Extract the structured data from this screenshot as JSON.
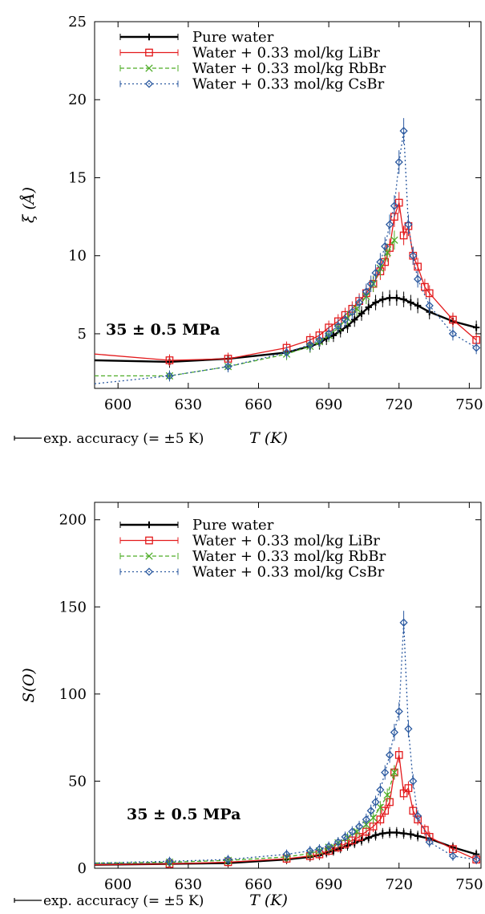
{
  "chart_data": [
    {
      "type": "line",
      "ylabel": "ξ (Å)",
      "xlabel": "T (K)",
      "xlim": [
        590,
        755
      ],
      "ylim": [
        1.5,
        25
      ],
      "xticks": [
        600,
        630,
        660,
        690,
        720,
        750
      ],
      "yticks": [
        5,
        10,
        15,
        20,
        25
      ],
      "annotation": "35 ±  0.5 MPa",
      "accuracy_note": "exp. accuracy (= ±5 K)",
      "legend_position": "top-left",
      "series": [
        {
          "name": "Pure water",
          "color": "#000000",
          "marker": "plus",
          "dash": "solid",
          "x": [
            590,
            622,
            647,
            672,
            682,
            686,
            689,
            692,
            695,
            698,
            701,
            704,
            707,
            710,
            713,
            716,
            719,
            722,
            725,
            728,
            733,
            743,
            753
          ],
          "y": [
            3.3,
            3.2,
            3.4,
            3.8,
            4.2,
            4.4,
            4.7,
            4.9,
            5.2,
            5.5,
            5.9,
            6.3,
            6.7,
            7.0,
            7.2,
            7.3,
            7.3,
            7.2,
            7.0,
            6.8,
            6.4,
            5.8,
            5.4
          ]
        },
        {
          "name": "Water + 0.33 mol/kg LiBr",
          "color": "#e31a1c",
          "marker": "square",
          "dash": "solid",
          "x": [
            590,
            622,
            647,
            672,
            682,
            686,
            690,
            694,
            697,
            700,
            703,
            706,
            709,
            712,
            714,
            716,
            718,
            720,
            722,
            724,
            726,
            728,
            731,
            733,
            743,
            753
          ],
          "y": [
            3.7,
            3.3,
            3.4,
            4.1,
            4.6,
            4.9,
            5.4,
            5.8,
            6.2,
            6.6,
            7.1,
            7.6,
            8.2,
            9.0,
            9.6,
            10.5,
            12.5,
            13.4,
            11.3,
            11.9,
            10.0,
            9.3,
            8.0,
            7.6,
            5.9,
            4.6
          ]
        },
        {
          "name": "Water + 0.33 mol/kg RbBr",
          "color": "#4dac26",
          "marker": "cross",
          "dash": "dashed",
          "x": [
            590,
            622,
            647,
            672,
            682,
            686,
            690,
            694,
            698,
            702,
            706,
            709,
            712,
            715,
            718
          ],
          "y": [
            2.3,
            2.3,
            2.9,
            3.7,
            4.2,
            4.5,
            4.9,
            5.4,
            6.0,
            6.6,
            7.4,
            8.2,
            9.2,
            10.2,
            11.0
          ]
        },
        {
          "name": "Water + 0.33 mol/kg CsBr",
          "color": "#2c5aa0",
          "marker": "diamond",
          "dash": "dotted",
          "x": [
            590,
            622,
            647,
            672,
            682,
            686,
            690,
            694,
            697,
            700,
            703,
            706,
            708,
            710,
            712,
            714,
            716,
            718,
            720,
            722,
            724,
            726,
            728,
            733,
            743,
            753
          ],
          "y": [
            1.8,
            2.3,
            2.9,
            3.8,
            4.3,
            4.6,
            5.0,
            5.5,
            5.9,
            6.4,
            7.0,
            7.7,
            8.2,
            8.9,
            9.6,
            10.6,
            12.0,
            13.2,
            16.0,
            18.0,
            12.0,
            10.0,
            8.5,
            6.8,
            5.0,
            4.1
          ]
        }
      ]
    },
    {
      "type": "line",
      "ylabel": "S(O)",
      "xlabel": "T (K)",
      "xlim": [
        590,
        755
      ],
      "ylim": [
        0,
        210
      ],
      "xticks": [
        600,
        630,
        660,
        690,
        720,
        750
      ],
      "yticks": [
        0,
        50,
        100,
        150,
        200
      ],
      "annotation": "35 ±  0.5 MPa",
      "accuracy_note": "exp. accuracy (= ±5 K)",
      "legend_position": "top-left",
      "series": [
        {
          "name": "Pure water",
          "color": "#000000",
          "marker": "plus",
          "dash": "solid",
          "x": [
            590,
            622,
            647,
            672,
            682,
            686,
            689,
            692,
            695,
            698,
            701,
            704,
            707,
            710,
            713,
            716,
            719,
            722,
            725,
            728,
            733,
            743,
            753
          ],
          "y": [
            2,
            2.5,
            3,
            5,
            6.5,
            7.5,
            9,
            10,
            11.5,
            13,
            14.5,
            16,
            17.5,
            19,
            20,
            20.5,
            20.5,
            20,
            19.5,
            18.5,
            17,
            12,
            8
          ]
        },
        {
          "name": "Water + 0.33 mol/kg LiBr",
          "color": "#e31a1c",
          "marker": "square",
          "dash": "solid",
          "x": [
            590,
            622,
            647,
            672,
            682,
            686,
            690,
            694,
            697,
            700,
            703,
            706,
            709,
            712,
            714,
            716,
            718,
            720,
            722,
            724,
            726,
            728,
            731,
            733,
            743,
            753
          ],
          "y": [
            2,
            2.5,
            3.5,
            5.5,
            7,
            8,
            10,
            12,
            14,
            16,
            18,
            21,
            24,
            28,
            33,
            38,
            55,
            65,
            43,
            46,
            33,
            28,
            22,
            18,
            11,
            5
          ]
        },
        {
          "name": "Water + 0.33 mol/kg RbBr",
          "color": "#4dac26",
          "marker": "cross",
          "dash": "dashed",
          "x": [
            590,
            622,
            647,
            672,
            682,
            686,
            690,
            694,
            698,
            702,
            706,
            709,
            712,
            715,
            718
          ],
          "y": [
            3,
            3.5,
            4.5,
            6.5,
            8.5,
            10,
            12,
            14.5,
            17.5,
            21,
            25,
            29,
            35,
            42,
            55
          ]
        },
        {
          "name": "Water + 0.33 mol/kg CsBr",
          "color": "#2c5aa0",
          "marker": "diamond",
          "dash": "dotted",
          "x": [
            590,
            622,
            647,
            672,
            682,
            686,
            690,
            694,
            697,
            700,
            703,
            706,
            708,
            710,
            712,
            714,
            716,
            718,
            720,
            722,
            724,
            726,
            728,
            733,
            743,
            753
          ],
          "y": [
            3,
            4,
            5,
            8,
            10,
            11,
            12.5,
            15,
            18,
            21,
            24,
            28,
            33,
            38,
            45,
            55,
            65,
            78,
            90,
            141,
            80,
            50,
            30,
            15,
            7,
            5
          ]
        }
      ]
    }
  ]
}
